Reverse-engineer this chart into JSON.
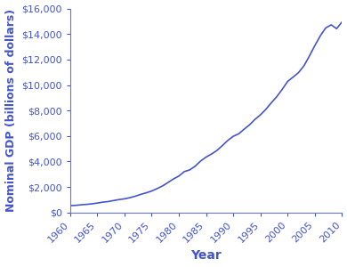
{
  "years": [
    1960,
    1961,
    1962,
    1963,
    1964,
    1965,
    1966,
    1967,
    1968,
    1969,
    1970,
    1971,
    1972,
    1973,
    1974,
    1975,
    1976,
    1977,
    1978,
    1979,
    1980,
    1981,
    1982,
    1983,
    1984,
    1985,
    1986,
    1987,
    1988,
    1989,
    1990,
    1991,
    1992,
    1993,
    1994,
    1995,
    1996,
    1997,
    1998,
    1999,
    2000,
    2001,
    2002,
    2003,
    2004,
    2005,
    2006,
    2007,
    2008,
    2009,
    2010
  ],
  "gdp": [
    543,
    563,
    605,
    638,
    685,
    743,
    815,
    861,
    942,
    1019,
    1075,
    1167,
    1282,
    1428,
    1548,
    1688,
    1877,
    2086,
    2357,
    2632,
    2863,
    3211,
    3345,
    3638,
    4041,
    4347,
    4590,
    4870,
    5253,
    5658,
    5979,
    6174,
    6539,
    6879,
    7309,
    7664,
    8100,
    8608,
    9089,
    9661,
    10285,
    10622,
    10978,
    11511,
    12275,
    13094,
    13856,
    14478,
    14719,
    14419,
    14958
  ],
  "line_color": "#4455cc",
  "xlabel": "Year",
  "ylabel": "Nominal GDP (billions of dollars)",
  "xlabel_fontsize": 10,
  "ylabel_fontsize": 9,
  "tick_label_fontsize": 8,
  "xlim": [
    1960,
    2010
  ],
  "ylim": [
    0,
    16000
  ],
  "yticks": [
    0,
    2000,
    4000,
    6000,
    8000,
    10000,
    12000,
    14000,
    16000
  ],
  "xticks": [
    1960,
    1965,
    1970,
    1975,
    1980,
    1985,
    1990,
    1995,
    2000,
    2005,
    2010
  ],
  "background_color": "#ffffff",
  "label_color": "#4455cc",
  "tick_color": "#4455cc",
  "spine_color": "#6677cc"
}
